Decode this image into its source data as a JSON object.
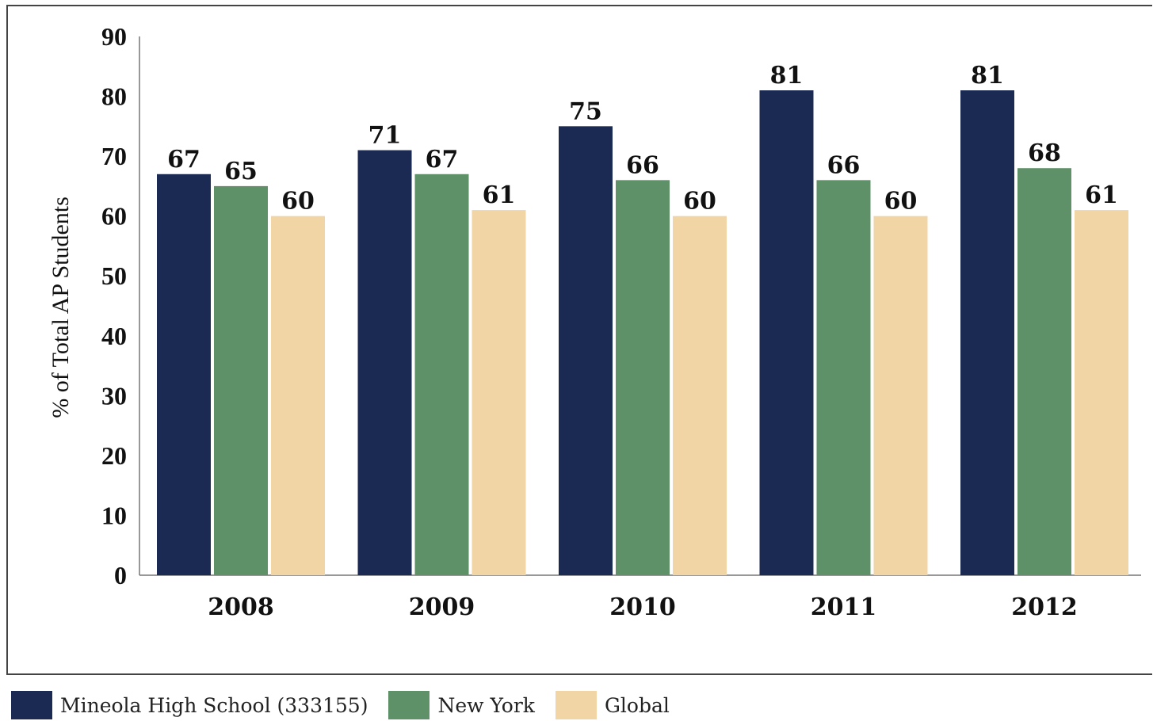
{
  "chart_data": {
    "type": "bar",
    "categories": [
      "2008",
      "2009",
      "2010",
      "2011",
      "2012"
    ],
    "series": [
      {
        "name": "Mineola High School (333155)",
        "color": "#1b2a52",
        "values": [
          67,
          71,
          75,
          81,
          81
        ]
      },
      {
        "name": "New York",
        "color": "#5e9168",
        "values": [
          65,
          67,
          66,
          66,
          68
        ]
      },
      {
        "name": "Global",
        "color": "#f1d5a4",
        "values": [
          60,
          61,
          60,
          60,
          61
        ]
      }
    ],
    "ylabel": "% of Total AP Students",
    "ylim": [
      0,
      90
    ],
    "yticks": [
      0,
      10,
      20,
      30,
      40,
      50,
      60,
      70,
      80,
      90
    ],
    "grid": false,
    "legend": "bottom-left"
  }
}
